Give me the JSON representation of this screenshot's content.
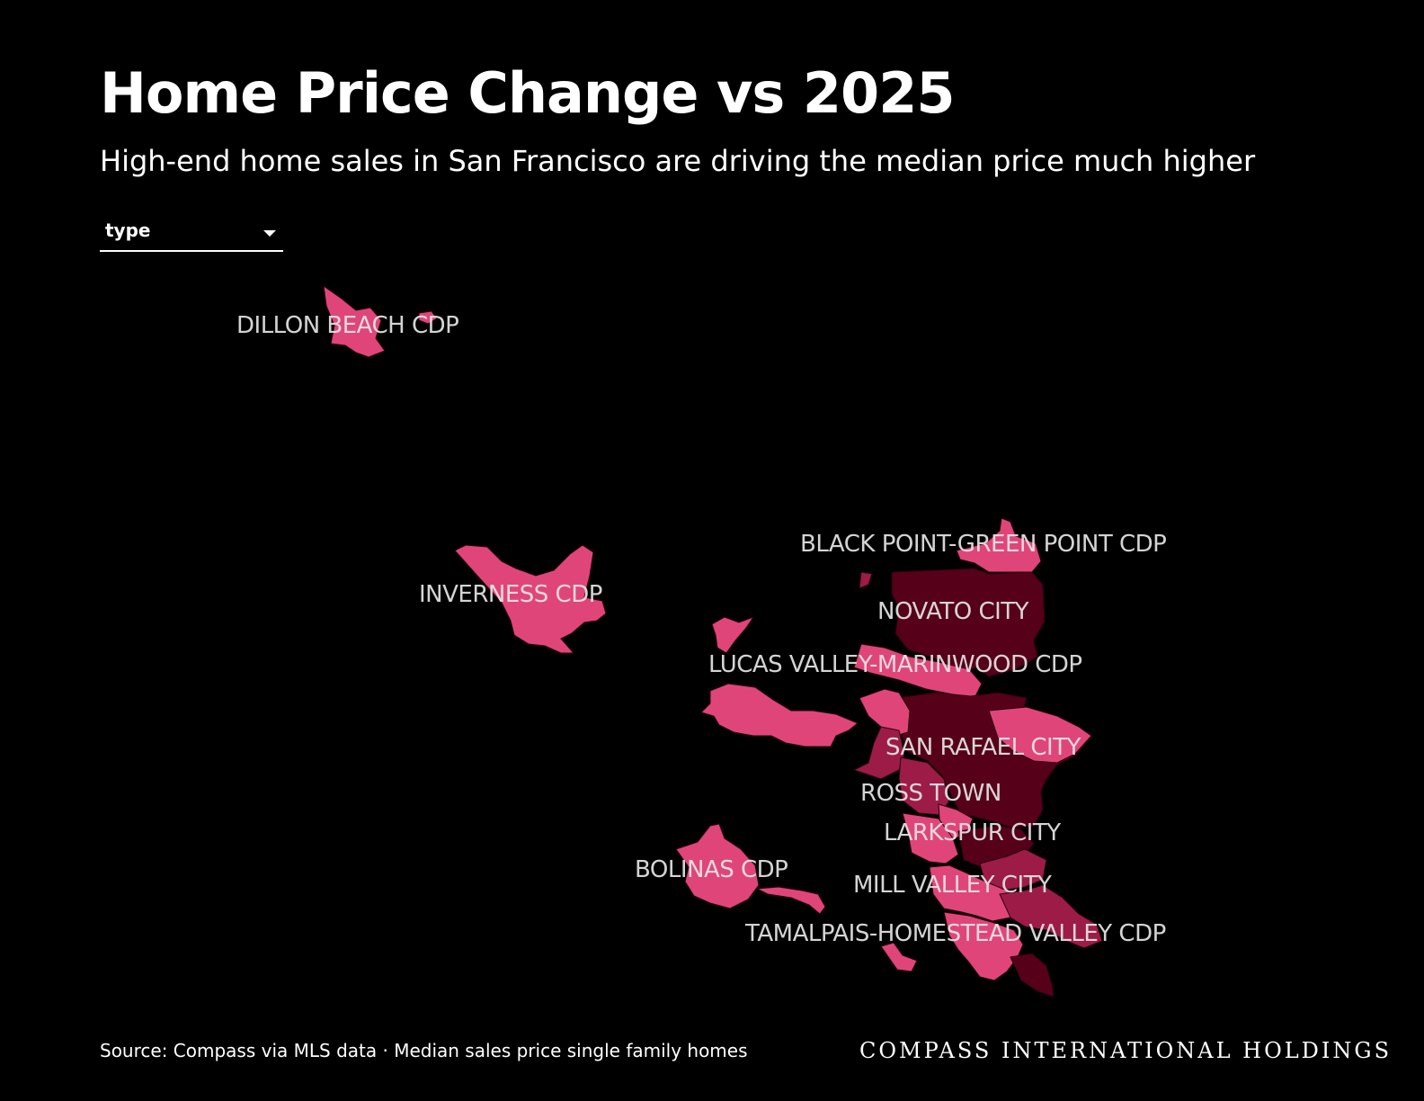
{
  "header": {
    "title": "Home Price Change vs 2025",
    "subtitle": "High-end home sales in San Francisco are driving the median price much higher"
  },
  "controls": {
    "type_select": {
      "value": "type"
    }
  },
  "map": {
    "colors": {
      "light": "#e0457a",
      "mid": "#9c1c47",
      "dark": "#560019"
    },
    "regions": [
      "DILLON BEACH CDP",
      "BLACK POINT-GREEN POINT CDP",
      "INVERNESS CDP",
      "NOVATO CITY",
      "LUCAS VALLEY-MARINWOOD CDP",
      "SAN RAFAEL CITY",
      "ROSS TOWN",
      "LARKSPUR CITY",
      "BOLINAS CDP",
      "MILL VALLEY CITY",
      "TAMALPAIS-HOMESTEAD VALLEY CDP"
    ]
  },
  "footer": {
    "source": "Source: Compass via MLS data · Median sales price single family homes",
    "brand": "COMPASS INTERNATIONAL HOLDINGS"
  }
}
